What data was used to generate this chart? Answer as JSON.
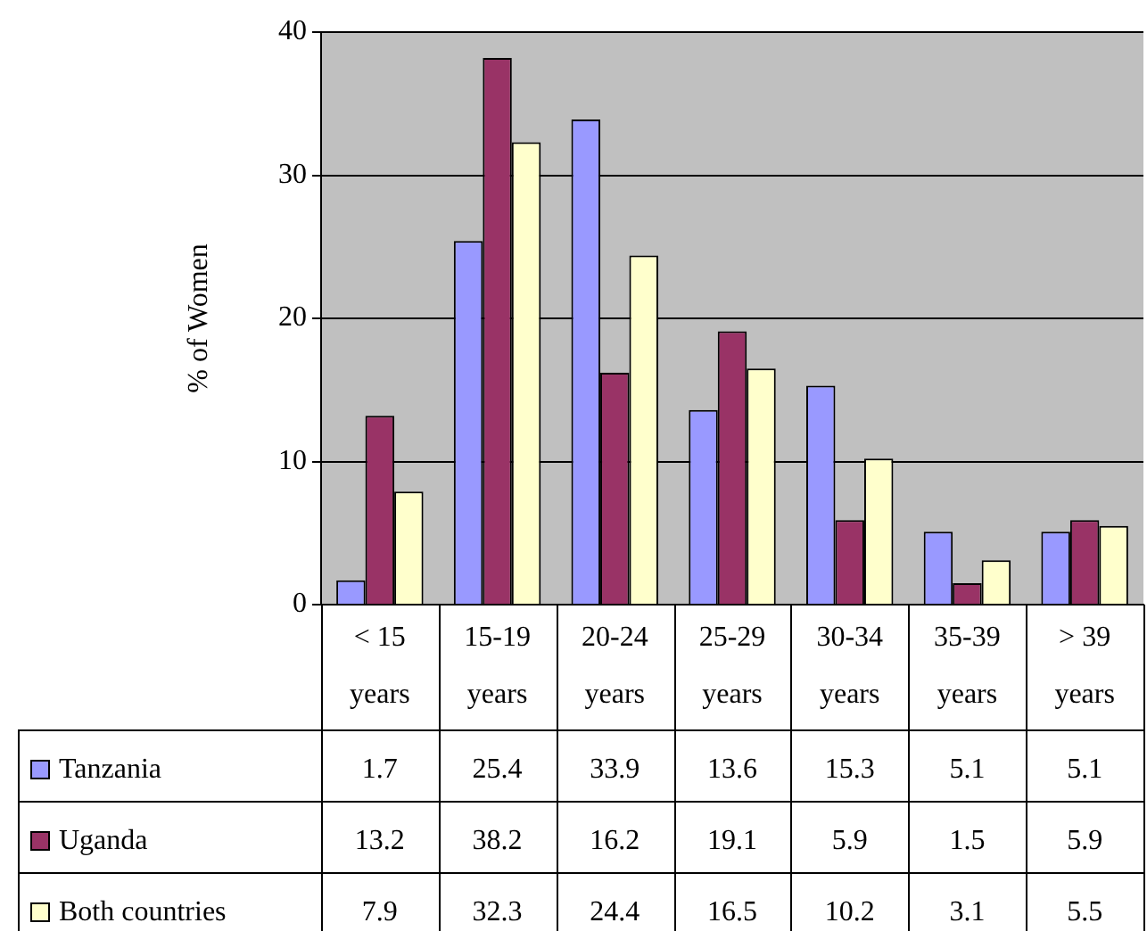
{
  "chart_data": {
    "type": "bar",
    "ylabel": "% of Women",
    "categories": [
      "< 15 years",
      "15-19 years",
      "20-24 years",
      "25-29 years",
      "30-34 years",
      "35-39 years",
      "> 39 years"
    ],
    "series": [
      {
        "name": "Tanzania",
        "color": "#9999ff",
        "values": [
          1.7,
          25.4,
          33.9,
          13.6,
          15.3,
          5.1,
          5.1
        ]
      },
      {
        "name": "Uganda",
        "color": "#993366",
        "values": [
          13.2,
          38.2,
          16.2,
          19.1,
          5.9,
          1.5,
          5.9
        ]
      },
      {
        "name": "Both countries",
        "color": "#ffffcc",
        "values": [
          7.9,
          32.3,
          24.4,
          16.5,
          10.2,
          3.1,
          5.5
        ]
      }
    ],
    "ylim": [
      0,
      40
    ],
    "yticks": [
      0,
      10,
      20,
      30,
      40
    ],
    "grid": "y",
    "legend": "bottom",
    "data_labels": true
  }
}
